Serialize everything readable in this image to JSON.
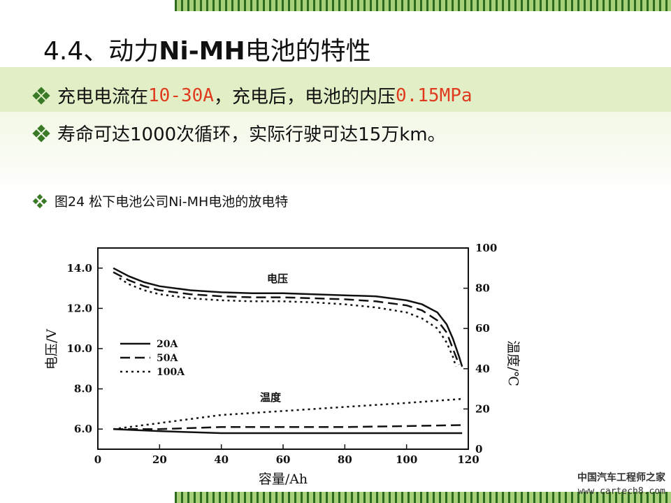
{
  "slide": {
    "title_prefix": "4.4、动力",
    "title_bold": "Ni-MH",
    "title_suffix": "电池的特性",
    "bullet1_a": "充电电流在",
    "bullet1_red1": "10-30A",
    "bullet1_b": "，充电后，电池的内压",
    "bullet1_red2": "0.15MPa",
    "bullet2": "寿命可达1000次循环，实际行驶可达15万km。",
    "bullet3": "图24 松下电池公司Ni-MH电池的放电特",
    "watermark_cn": "中国汽车工程师之家",
    "watermark_url": "www.cartech8.com",
    "colors": {
      "accent_red": "#e03a1e",
      "stripe_green": "#2f6b1f",
      "band_green": "#e2efc6"
    }
  },
  "chart_data": {
    "type": "line",
    "xlabel": "容量/Ah",
    "ylabel": "电压/V",
    "y2label": "温度/℃",
    "xlim": [
      0,
      120
    ],
    "ylim": [
      5,
      15
    ],
    "y2lim": [
      0,
      100
    ],
    "xticks": [
      0,
      20,
      40,
      60,
      80,
      100,
      120
    ],
    "yticks": [
      6.0,
      8.0,
      10.0,
      12.0,
      14.0
    ],
    "y2ticks": [
      0,
      20,
      40,
      60,
      80,
      100
    ],
    "annotations": {
      "voltage": "电压",
      "temperature": "温度"
    },
    "legend": [
      "20A",
      "50A",
      "100A"
    ],
    "legend_placement": "middle-left",
    "grid": false,
    "voltage_series": [
      {
        "name": "20A",
        "style": "solid",
        "axis": "left",
        "x": [
          5,
          10,
          15,
          20,
          30,
          40,
          50,
          60,
          70,
          80,
          90,
          100,
          105,
          110,
          113,
          115,
          117,
          118
        ],
        "y": [
          14.0,
          13.6,
          13.3,
          13.1,
          12.9,
          12.8,
          12.75,
          12.75,
          12.7,
          12.65,
          12.6,
          12.4,
          12.2,
          11.8,
          11.2,
          10.5,
          9.6,
          9.1
        ]
      },
      {
        "name": "50A",
        "style": "dashed",
        "axis": "left",
        "x": [
          5,
          10,
          15,
          20,
          30,
          40,
          50,
          60,
          70,
          80,
          90,
          100,
          105,
          110,
          113,
          115,
          117
        ],
        "y": [
          13.8,
          13.4,
          13.1,
          12.9,
          12.7,
          12.6,
          12.55,
          12.55,
          12.5,
          12.45,
          12.35,
          12.15,
          11.9,
          11.4,
          10.8,
          10.0,
          9.2
        ]
      },
      {
        "name": "100A",
        "style": "dotted",
        "axis": "left",
        "x": [
          7,
          10,
          15,
          20,
          30,
          40,
          50,
          60,
          70,
          80,
          90,
          100,
          105,
          110,
          113,
          115,
          116
        ],
        "y": [
          13.5,
          13.2,
          12.9,
          12.7,
          12.5,
          12.4,
          12.35,
          12.35,
          12.3,
          12.2,
          12.05,
          11.8,
          11.5,
          11.0,
          10.3,
          9.6,
          9.1
        ]
      }
    ],
    "temperature_series": [
      {
        "name": "20A",
        "style": "solid",
        "axis": "right",
        "x": [
          5,
          20,
          40,
          60,
          80,
          100,
          118
        ],
        "y": [
          10,
          9,
          8,
          8,
          8,
          8,
          8
        ]
      },
      {
        "name": "50A",
        "style": "dashed",
        "axis": "right",
        "x": [
          5,
          20,
          40,
          60,
          80,
          100,
          118
        ],
        "y": [
          10,
          10,
          11,
          11,
          11,
          11.5,
          12
        ]
      },
      {
        "name": "100A",
        "style": "dotted",
        "axis": "right",
        "x": [
          5,
          20,
          40,
          60,
          80,
          100,
          118
        ],
        "y": [
          10,
          13,
          17,
          19,
          21,
          23,
          25
        ]
      }
    ]
  }
}
